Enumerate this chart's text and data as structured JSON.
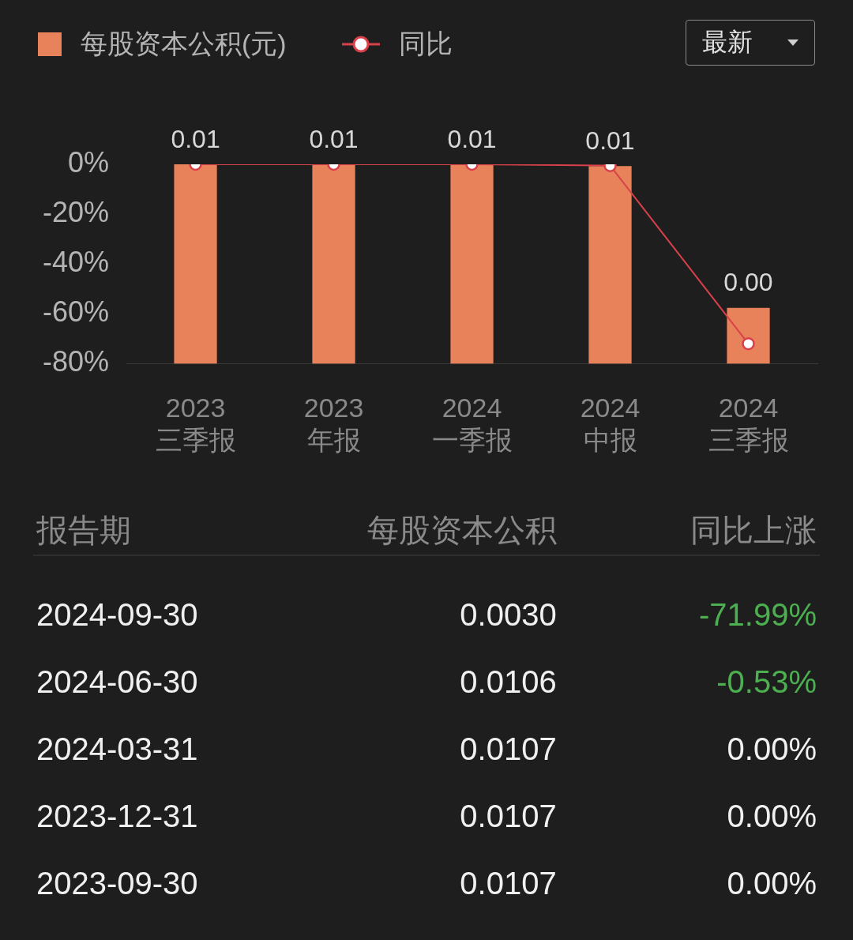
{
  "chart_data": {
    "type": "bar",
    "categories": [
      "2023\n三季报",
      "2023\n年报",
      "2024\n一季报",
      "2024\n中报",
      "2024\n三季报"
    ],
    "series": [
      {
        "name": "每股资本公积(元)",
        "type": "bar",
        "color": "#e8825a",
        "axis": "y2",
        "values": [
          0.0107,
          0.0107,
          0.0107,
          0.0106,
          0.003
        ],
        "value_labels": [
          "0.01",
          "0.01",
          "0.01",
          "0.01",
          "0.00"
        ]
      },
      {
        "name": "同比",
        "type": "line",
        "color": "#d9414a",
        "values": [
          0,
          0,
          0,
          -0.53,
          -71.99
        ]
      }
    ],
    "ylim": [
      -80,
      0
    ],
    "yticks": [
      {
        "value": 0,
        "label": "0%"
      },
      {
        "value": -20,
        "label": "-20%"
      },
      {
        "value": -40,
        "label": "-40%"
      },
      {
        "value": -60,
        "label": "-60%"
      },
      {
        "value": -80,
        "label": "-80%"
      }
    ],
    "grid": false,
    "legend": "top left",
    "marker": "circle",
    "line_style": "solid",
    "annotations": [
      "最新",
      "报告期",
      "每股资本公积",
      "同比上涨",
      "2024-09-30",
      "0.0030",
      "-71.99%",
      "2024-06-30",
      "0.0106",
      "-0.53%",
      "2024-03-31",
      "0.0107",
      "0.00%",
      "2023-12-31",
      "0.0107",
      "0.00%",
      "2023-09-30",
      "0.0107",
      "0.00%"
    ]
  }
}
